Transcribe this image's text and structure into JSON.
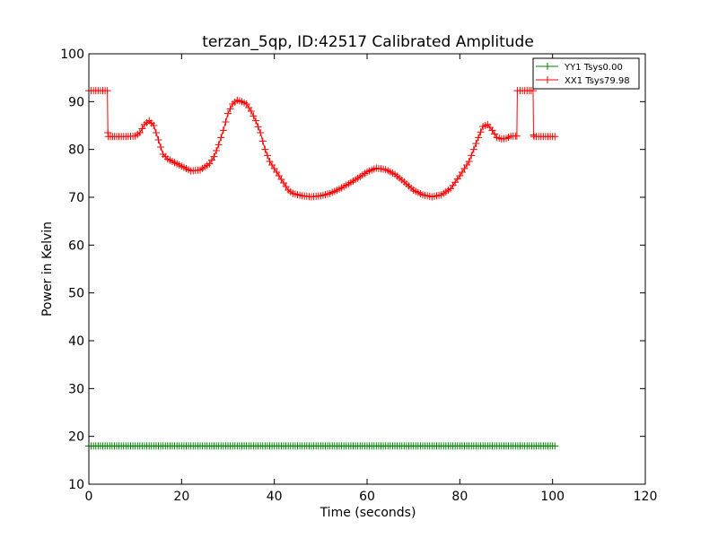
{
  "chart_data": {
    "type": "line",
    "title": "terzan_5qp, ID:42517 Calibrated Amplitude",
    "xlabel": "Time (seconds)",
    "ylabel": "Power in Kelvin",
    "xlim": [
      0,
      120
    ],
    "ylim": [
      10,
      100
    ],
    "x_ticks": [
      0,
      20,
      40,
      60,
      80,
      100,
      120
    ],
    "y_ticks": [
      10,
      20,
      30,
      40,
      50,
      60,
      70,
      80,
      90,
      100
    ],
    "grid": false,
    "legend_position": "top-right",
    "marker": "+",
    "series": [
      {
        "name": "YY1 Tsys0.00",
        "color": "#008000",
        "points": [
          [
            0,
            18
          ],
          [
            100.5,
            18
          ]
        ]
      },
      {
        "name": "XX1 Tsys79.98",
        "color": "#ff0000",
        "points": [
          [
            0,
            92.3
          ],
          [
            1,
            92.3
          ],
          [
            2,
            92.3
          ],
          [
            3,
            92.3
          ],
          [
            4,
            92.3
          ],
          [
            4.1,
            83.5
          ],
          [
            4.2,
            82.7
          ],
          [
            6,
            82.7
          ],
          [
            8,
            82.7
          ],
          [
            10,
            82.8
          ],
          [
            11,
            83.5
          ],
          [
            12,
            85.2
          ],
          [
            13,
            86
          ],
          [
            14,
            85
          ],
          [
            15,
            82
          ],
          [
            16,
            79
          ],
          [
            17,
            78
          ],
          [
            18,
            77.5
          ],
          [
            20,
            76.5
          ],
          [
            22,
            75.5
          ],
          [
            24,
            75.7
          ],
          [
            26,
            77
          ],
          [
            27,
            78.5
          ],
          [
            28,
            81
          ],
          [
            29,
            84
          ],
          [
            30,
            87.5
          ],
          [
            31,
            89.5
          ],
          [
            32,
            90.3
          ],
          [
            33,
            90
          ],
          [
            34,
            89.5
          ],
          [
            35,
            88
          ],
          [
            36,
            86
          ],
          [
            37,
            83.5
          ],
          [
            38,
            80
          ],
          [
            39,
            77.5
          ],
          [
            40,
            76
          ],
          [
            41,
            74.5
          ],
          [
            42,
            73
          ],
          [
            43,
            71.5
          ],
          [
            44,
            70.8
          ],
          [
            46,
            70.3
          ],
          [
            48,
            70.1
          ],
          [
            50,
            70.3
          ],
          [
            52,
            70.8
          ],
          [
            54,
            71.7
          ],
          [
            56,
            72.8
          ],
          [
            58,
            74
          ],
          [
            60,
            75.3
          ],
          [
            62,
            76.1
          ],
          [
            64,
            75.8
          ],
          [
            66,
            74.8
          ],
          [
            68,
            73.2
          ],
          [
            70,
            71.5
          ],
          [
            72,
            70.5
          ],
          [
            74,
            70.1
          ],
          [
            76,
            70.5
          ],
          [
            78,
            71.8
          ],
          [
            80,
            74.5
          ],
          [
            82,
            77.5
          ],
          [
            83,
            80
          ],
          [
            84,
            82.5
          ],
          [
            85,
            84.8
          ],
          [
            86,
            85.2
          ],
          [
            87,
            84
          ],
          [
            88,
            82.5
          ],
          [
            89,
            82.2
          ],
          [
            90,
            82.3
          ],
          [
            91,
            82.8
          ],
          [
            92,
            82.8
          ],
          [
            92.3,
            82.8
          ],
          [
            92.4,
            92.3
          ],
          [
            93,
            92.3
          ],
          [
            94,
            92.3
          ],
          [
            95,
            92.3
          ],
          [
            95.8,
            92.3
          ],
          [
            95.9,
            83
          ],
          [
            96,
            82.7
          ],
          [
            98,
            82.7
          ],
          [
            100,
            82.7
          ],
          [
            100.5,
            82.7
          ]
        ]
      }
    ]
  }
}
